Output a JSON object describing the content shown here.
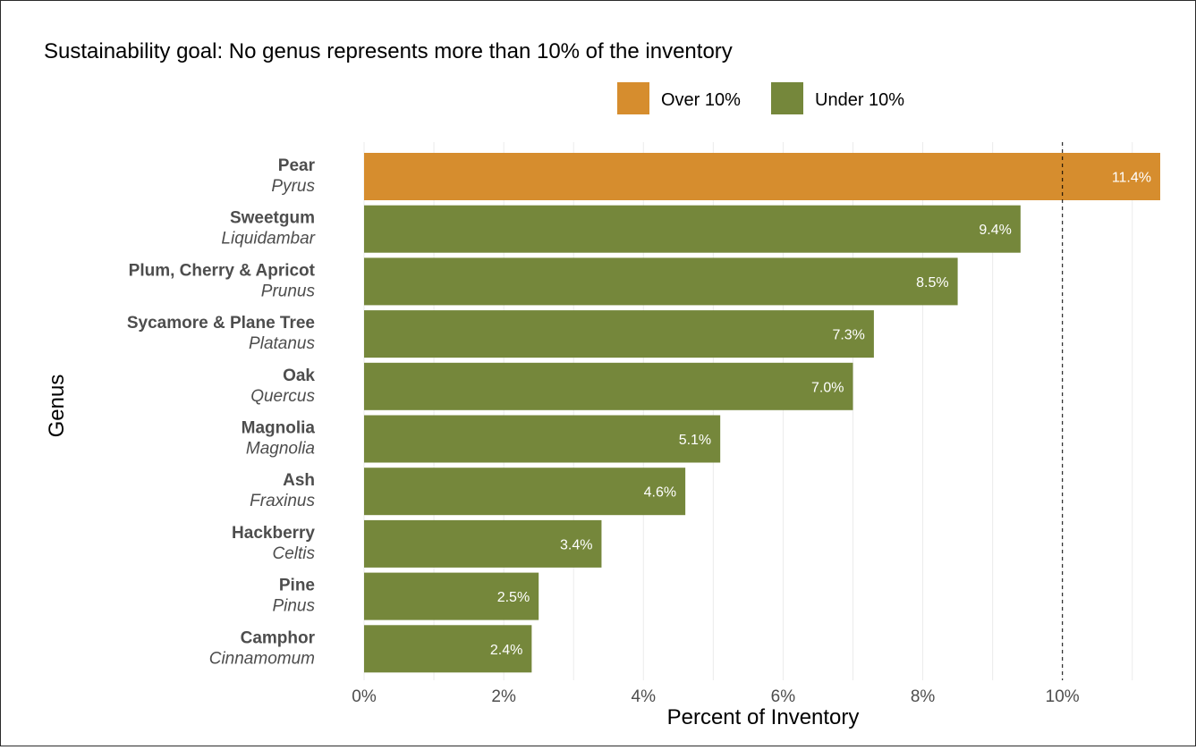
{
  "chart_data": {
    "type": "bar",
    "orientation": "horizontal",
    "title": "Sustainability goal: No genus represents more than 10% of the inventory",
    "xlabel": "Percent of Inventory",
    "ylabel": "Genus",
    "xlim": [
      0,
      11.4
    ],
    "x_ticks": [
      "0%",
      "2%",
      "4%",
      "6%",
      "8%",
      "10%"
    ],
    "x_tick_values": [
      0,
      2,
      4,
      6,
      8,
      10
    ],
    "reference_line": {
      "value": 10,
      "style": "dashed"
    },
    "legend": {
      "placement": "top-right",
      "items": [
        {
          "label": "Over 10%",
          "color": "#d68d2e"
        },
        {
          "label": "Under 10%",
          "color": "#75873b"
        }
      ]
    },
    "categories": [
      {
        "common": "Pear",
        "scientific": "Pyrus",
        "value": 11.4,
        "label": "11.4%",
        "group": "Over 10%"
      },
      {
        "common": "Sweetgum",
        "scientific": "Liquidambar",
        "value": 9.4,
        "label": "9.4%",
        "group": "Under 10%"
      },
      {
        "common": "Plum, Cherry & Apricot",
        "scientific": "Prunus",
        "value": 8.5,
        "label": "8.5%",
        "group": "Under 10%"
      },
      {
        "common": "Sycamore & Plane Tree",
        "scientific": "Platanus",
        "value": 7.3,
        "label": "7.3%",
        "group": "Under 10%"
      },
      {
        "common": "Oak",
        "scientific": "Quercus",
        "value": 7.0,
        "label": "7.0%",
        "group": "Under 10%"
      },
      {
        "common": "Magnolia",
        "scientific": "Magnolia",
        "value": 5.1,
        "label": "5.1%",
        "group": "Under 10%"
      },
      {
        "common": "Ash",
        "scientific": "Fraxinus",
        "value": 4.6,
        "label": "4.6%",
        "group": "Under 10%"
      },
      {
        "common": "Hackberry",
        "scientific": "Celtis",
        "value": 3.4,
        "label": "3.4%",
        "group": "Under 10%"
      },
      {
        "common": "Pine",
        "scientific": "Pinus",
        "value": 2.5,
        "label": "2.5%",
        "group": "Under 10%"
      },
      {
        "common": "Camphor",
        "scientific": "Cinnamomum",
        "value": 2.4,
        "label": "2.4%",
        "group": "Under 10%"
      }
    ]
  }
}
